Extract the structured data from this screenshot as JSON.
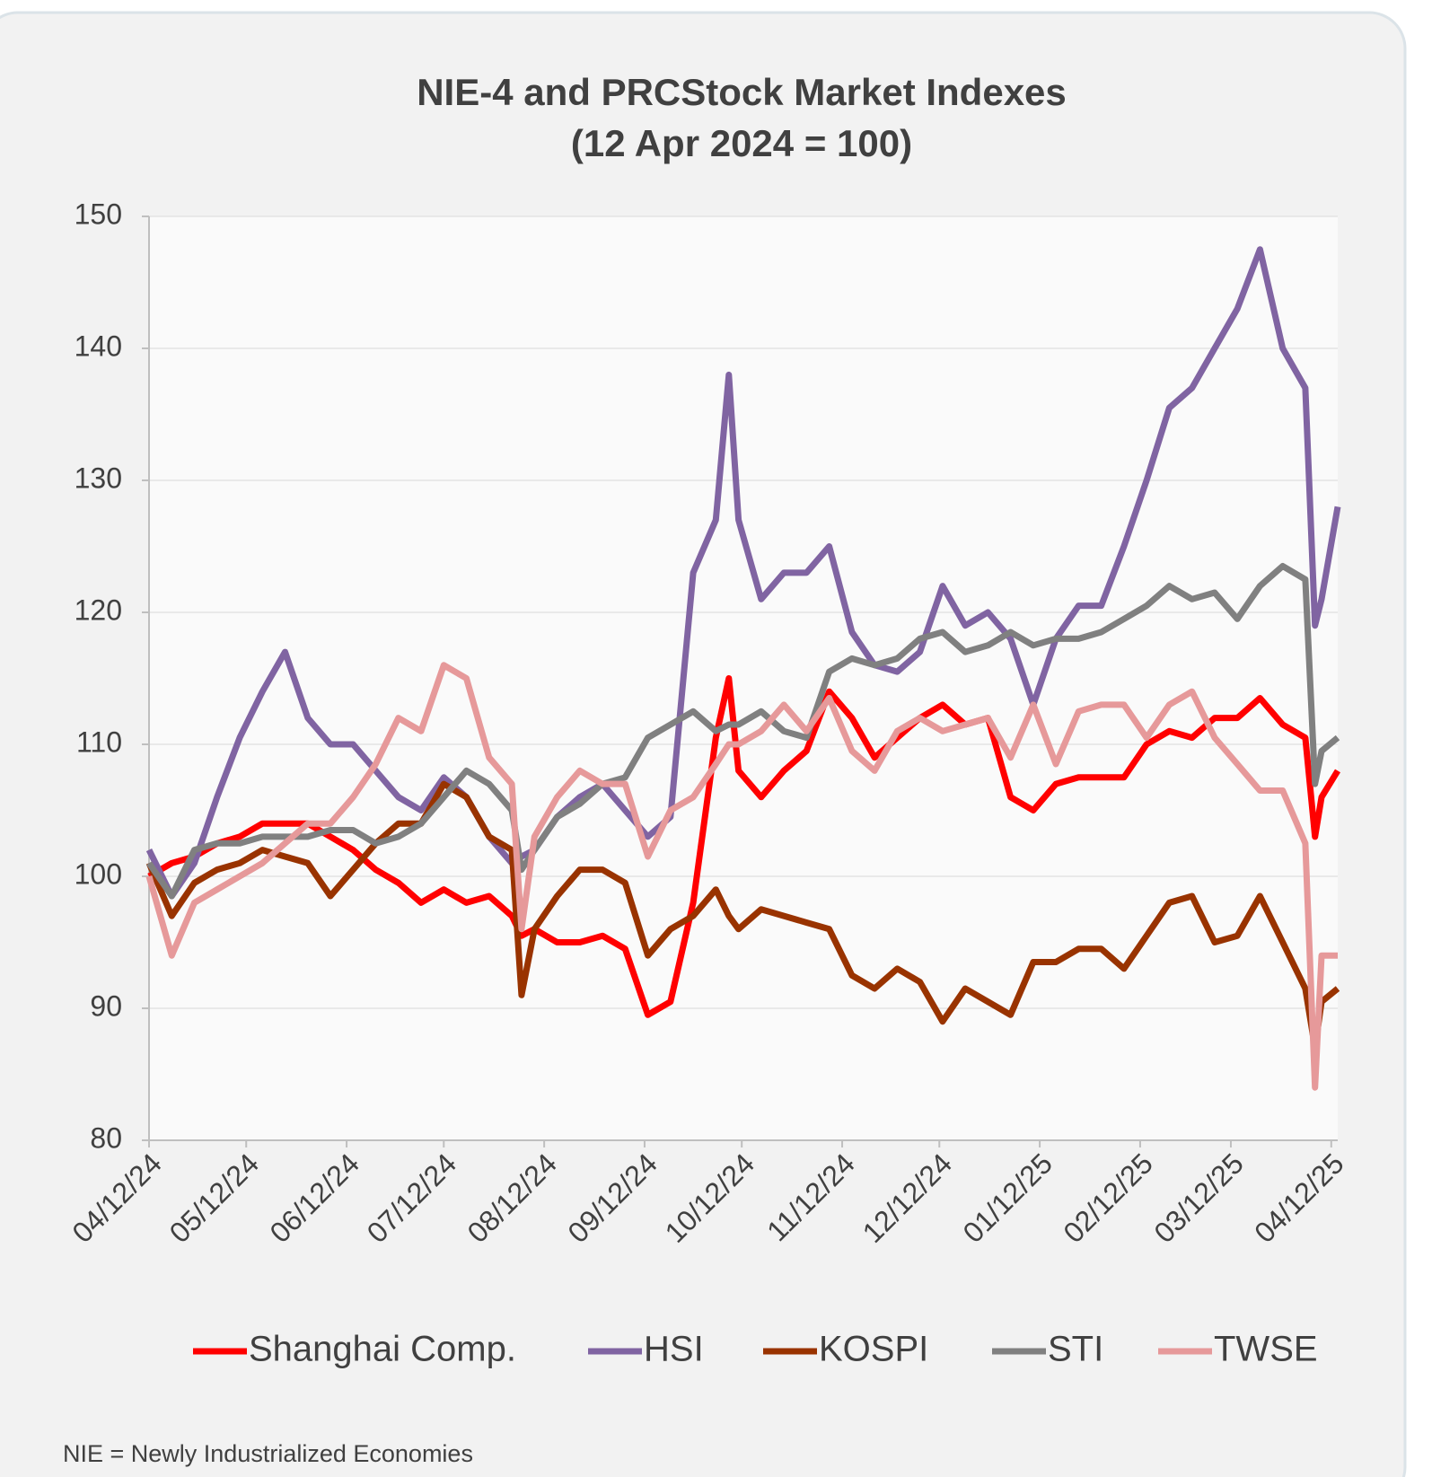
{
  "chart_data": {
    "type": "line",
    "title": "NIE-4 and PRCStock Market Indexes",
    "subtitle": "(12 Apr 2024 = 100)",
    "note": "NIE = Newly Industrialized Economies",
    "x": [
      "2024-04-12",
      "2024-04-19",
      "2024-04-26",
      "2024-05-03",
      "2024-05-10",
      "2024-05-17",
      "2024-05-24",
      "2024-05-31",
      "2024-06-07",
      "2024-06-14",
      "2024-06-21",
      "2024-06-28",
      "2024-07-05",
      "2024-07-12",
      "2024-07-19",
      "2024-07-26",
      "2024-08-02",
      "2024-08-05",
      "2024-08-09",
      "2024-08-16",
      "2024-08-23",
      "2024-08-30",
      "2024-09-06",
      "2024-09-13",
      "2024-09-20",
      "2024-09-27",
      "2024-10-04",
      "2024-10-08",
      "2024-10-11",
      "2024-10-18",
      "2024-10-25",
      "2024-11-01",
      "2024-11-08",
      "2024-11-15",
      "2024-11-22",
      "2024-11-29",
      "2024-12-06",
      "2024-12-13",
      "2024-12-20",
      "2024-12-27",
      "2025-01-03",
      "2025-01-10",
      "2025-01-17",
      "2025-01-24",
      "2025-01-31",
      "2025-02-07",
      "2025-02-14",
      "2025-02-21",
      "2025-02-28",
      "2025-03-07",
      "2025-03-14",
      "2025-03-21",
      "2025-03-28",
      "2025-04-04",
      "2025-04-07",
      "2025-04-09",
      "2025-04-14"
    ],
    "series": [
      {
        "name": "Shanghai Comp.",
        "color": "#ff0000",
        "values": [
          100,
          101,
          101.5,
          102.5,
          103,
          104,
          104,
          104,
          103,
          102,
          100.5,
          99.5,
          98,
          99,
          98,
          98.5,
          97,
          95.5,
          96,
          95,
          95,
          95.5,
          94.5,
          89.5,
          90.5,
          98,
          110.5,
          115,
          108,
          106,
          108,
          109.5,
          114,
          112,
          109,
          110.5,
          112,
          113,
          111.5,
          112,
          106,
          105,
          107,
          107.5,
          107.5,
          107.5,
          110,
          111,
          110.5,
          112,
          112,
          113.5,
          111.5,
          110.5,
          103,
          106,
          108
        ]
      },
      {
        "name": "HSI",
        "color": "#8064a2",
        "values": [
          102,
          98.5,
          101,
          106,
          110.5,
          114,
          117,
          112,
          110,
          110,
          108,
          106,
          105,
          107.5,
          106,
          103,
          101,
          101.5,
          102,
          104.5,
          106,
          107,
          105,
          103,
          104.5,
          123,
          127,
          138,
          127,
          121,
          123,
          123,
          125,
          118.5,
          116,
          115.5,
          117,
          122,
          119,
          120,
          118,
          113,
          118,
          120.5,
          120.5,
          125,
          130,
          135.5,
          137,
          140,
          143,
          147.5,
          140,
          137,
          119,
          121,
          128
        ]
      },
      {
        "name": "KOSPI",
        "color": "#993300",
        "values": [
          101,
          97,
          99.5,
          100.5,
          101,
          102,
          101.5,
          101,
          98.5,
          100.5,
          102.5,
          104,
          104,
          107,
          106,
          103,
          102,
          91,
          96,
          98.5,
          100.5,
          100.5,
          99.5,
          94,
          96,
          97,
          99,
          97,
          96,
          97.5,
          97,
          96.5,
          96,
          92.5,
          91.5,
          93,
          92,
          89,
          91.5,
          90.5,
          89.5,
          93.5,
          93.5,
          94.5,
          94.5,
          93,
          95.5,
          98,
          98.5,
          95,
          95.5,
          98.5,
          95,
          91.5,
          87,
          90.5,
          91.5
        ]
      },
      {
        "name": "STI",
        "color": "#808080",
        "values": [
          101,
          98.5,
          102,
          102.5,
          102.5,
          103,
          103,
          103,
          103.5,
          103.5,
          102.5,
          103,
          104,
          106,
          108,
          107,
          105,
          100.5,
          102,
          104.5,
          105.5,
          107,
          107.5,
          110.5,
          111.5,
          112.5,
          111,
          111.5,
          111.5,
          112.5,
          111,
          110.5,
          115.5,
          116.5,
          116,
          116.5,
          118,
          118.5,
          117,
          117.5,
          118.5,
          117.5,
          118,
          118,
          118.5,
          119.5,
          120.5,
          122,
          121,
          121.5,
          119.5,
          122,
          123.5,
          122.5,
          107,
          109.5,
          110.5
        ]
      },
      {
        "name": "TWSE",
        "color": "#e6999a",
        "values": [
          100,
          94,
          98,
          99,
          100,
          101,
          102.5,
          104,
          104,
          106,
          108.5,
          112,
          111,
          116,
          115,
          109,
          107,
          96,
          103,
          106,
          108,
          107,
          107,
          101.5,
          105,
          106,
          108.5,
          110,
          110,
          111,
          113,
          111,
          113.5,
          109.5,
          108,
          111,
          112,
          111,
          111.5,
          112,
          109,
          113,
          108.5,
          112.5,
          113,
          113,
          110.5,
          113,
          114,
          110.5,
          108.5,
          106.5,
          106.5,
          102.5,
          84,
          94,
          94
        ]
      }
    ],
    "xlim": [
      "2024-04-12",
      "2025-04-14"
    ],
    "xticks": [
      {
        "value": "2024-04-12",
        "label": "04/12/24"
      },
      {
        "value": "2024-05-12",
        "label": "05/12/24"
      },
      {
        "value": "2024-06-12",
        "label": "06/12/24"
      },
      {
        "value": "2024-07-12",
        "label": "07/12/24"
      },
      {
        "value": "2024-08-12",
        "label": "08/12/24"
      },
      {
        "value": "2024-09-12",
        "label": "09/12/24"
      },
      {
        "value": "2024-10-12",
        "label": "10/12/24"
      },
      {
        "value": "2024-11-12",
        "label": "11/12/24"
      },
      {
        "value": "2024-12-12",
        "label": "12/12/24"
      },
      {
        "value": "2025-01-12",
        "label": "01/12/25"
      },
      {
        "value": "2025-02-12",
        "label": "02/12/25"
      },
      {
        "value": "2025-03-12",
        "label": "03/12/25"
      },
      {
        "value": "2025-04-12",
        "label": "04/12/25"
      }
    ],
    "ylim": [
      80,
      150
    ],
    "yticks": [
      80,
      90,
      100,
      110,
      120,
      130,
      140,
      150
    ],
    "grid": true,
    "legend": "bottom"
  }
}
